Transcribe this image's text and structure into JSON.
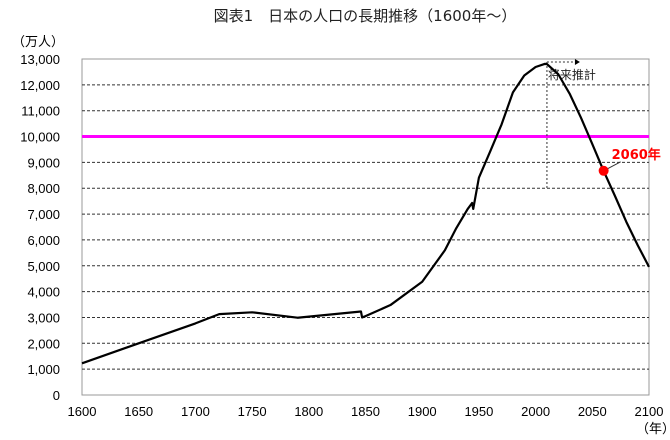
{
  "chart_data": {
    "type": "line",
    "title": "図表1　日本の人口の長期推移（1600年～）",
    "ylabel": "（万人）",
    "xlabel": "（年）",
    "xlim": [
      1600,
      2100
    ],
    "ylim": [
      0,
      13000
    ],
    "x_ticks": [
      1600,
      1650,
      1700,
      1750,
      1800,
      1850,
      1900,
      1950,
      2000,
      2050,
      2100
    ],
    "y_ticks": [
      0,
      1000,
      2000,
      3000,
      4000,
      5000,
      6000,
      7000,
      8000,
      9000,
      10000,
      11000,
      12000,
      13000
    ],
    "y_tick_labels": [
      "0",
      "1,000",
      "2,000",
      "3,000",
      "4,000",
      "5,000",
      "6,000",
      "7,000",
      "8,000",
      "9,000",
      "10,000",
      "11,000",
      "12,000",
      "13,000"
    ],
    "grid": "horizontal dashed",
    "series": [
      {
        "color": "#000000",
        "x": [
          1600,
          1650,
          1700,
          1721,
          1750,
          1790,
          1846,
          1847,
          1850,
          1872,
          1900,
          1920,
          1930,
          1940,
          1944,
          1945,
          1950,
          1960,
          1970,
          1980,
          1990,
          2000,
          2008,
          2010,
          2020,
          2030,
          2040,
          2050,
          2060,
          2070,
          2080,
          2090,
          2100
        ],
        "y": [
          1227,
          2000,
          2770,
          3128,
          3200,
          2990,
          3230,
          3000,
          3050,
          3480,
          4380,
          5600,
          6450,
          7190,
          7430,
          7200,
          8410,
          9430,
          10470,
          11710,
          12360,
          12690,
          12810,
          12806,
          12410,
          11660,
          10730,
          9710,
          8670,
          7700,
          6700,
          5800,
          4959
        ]
      }
    ],
    "reference_line": {
      "y": 10000,
      "color": "#ff00ff"
    },
    "annotations": [
      {
        "text": "将来推計",
        "x_from": 2010,
        "y_at_or_above": 8000
      },
      {
        "text": "2060年",
        "x": 2060,
        "y": 8674,
        "color": "#ff0000"
      }
    ]
  }
}
